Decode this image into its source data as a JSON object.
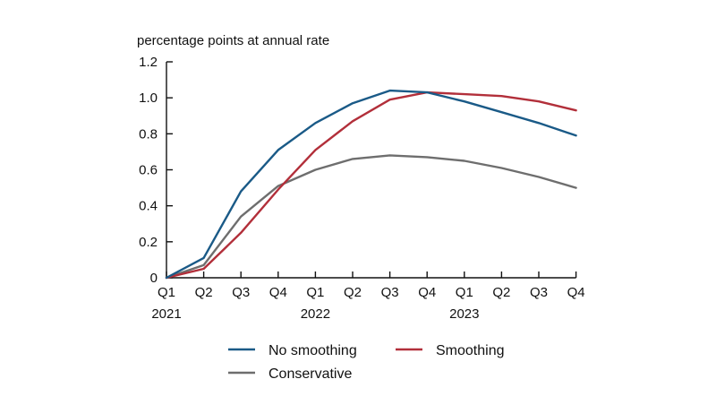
{
  "chart_data": {
    "type": "line",
    "title": "",
    "ylabel": "percentage points at annual rate",
    "xlabel": "",
    "ylim": [
      0,
      1.2
    ],
    "yticks": [
      0,
      0.2,
      0.4,
      0.6,
      0.8,
      1.0,
      1.2
    ],
    "ytick_labels": [
      "0",
      "0.2",
      "0.4",
      "0.6",
      "0.8",
      "1.0",
      "1.2"
    ],
    "categories": [
      "Q1",
      "Q2",
      "Q3",
      "Q4",
      "Q1",
      "Q2",
      "Q3",
      "Q4",
      "Q1",
      "Q2",
      "Q3",
      "Q4"
    ],
    "year_labels": [
      {
        "index": 0,
        "label": "2021"
      },
      {
        "index": 4,
        "label": "2022"
      },
      {
        "index": 8,
        "label": "2023"
      }
    ],
    "legend_position": "bottom",
    "series": [
      {
        "name": "No smoothing",
        "color": "#1a5a87",
        "values": [
          0.0,
          0.11,
          0.48,
          0.71,
          0.86,
          0.97,
          1.04,
          1.03,
          0.98,
          0.92,
          0.86,
          0.79
        ]
      },
      {
        "name": "Smoothing",
        "color": "#b22f3a",
        "values": [
          0.0,
          0.05,
          0.25,
          0.49,
          0.71,
          0.87,
          0.99,
          1.03,
          1.02,
          1.01,
          0.98,
          0.93
        ]
      },
      {
        "name": "Conservative",
        "color": "#6e6e6e",
        "values": [
          0.0,
          0.07,
          0.34,
          0.51,
          0.6,
          0.66,
          0.68,
          0.67,
          0.65,
          0.61,
          0.56,
          0.5
        ]
      }
    ]
  }
}
